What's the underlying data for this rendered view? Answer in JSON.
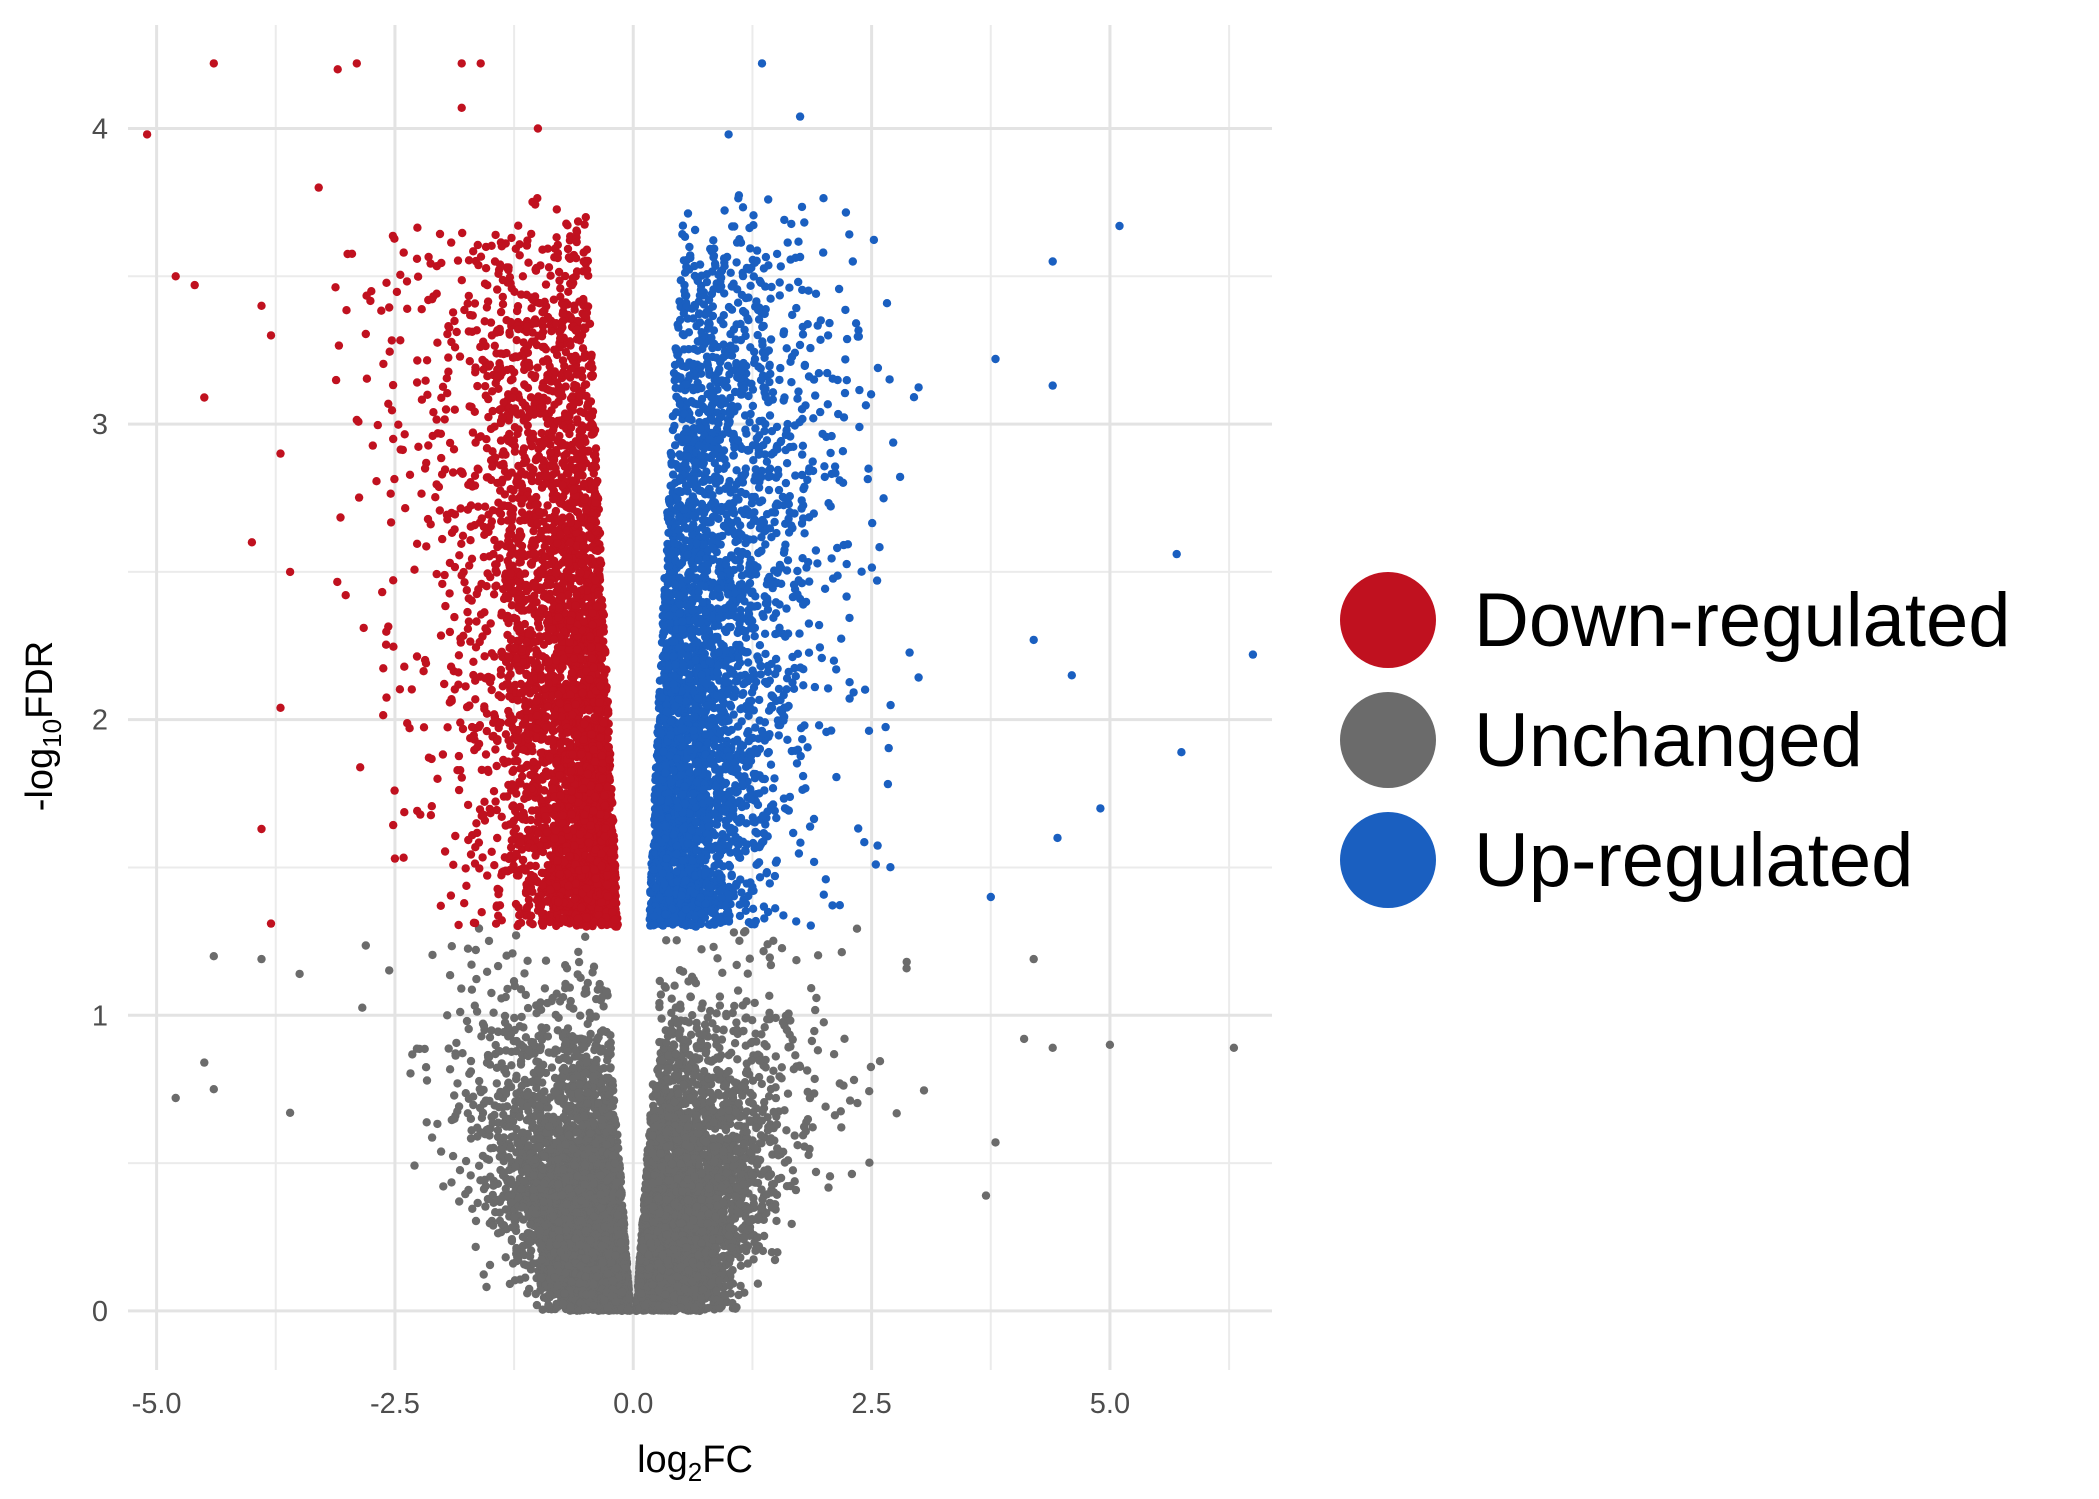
{
  "chart_data": {
    "type": "scatter",
    "title": "",
    "xlabel": {
      "base": "log",
      "sub": "2",
      "rest": "FC"
    },
    "ylabel": {
      "prefix": "-log",
      "sub": "10",
      "rest": "FDR"
    },
    "xlim": [
      -5.3,
      6.7
    ],
    "ylim": [
      -0.2,
      4.35
    ],
    "x_ticks": [
      -5.0,
      -2.5,
      0.0,
      2.5,
      5.0
    ],
    "x_tick_labels": [
      "-5.0",
      "-2.5",
      "0.0",
      "2.5",
      "5.0"
    ],
    "y_ticks": [
      0,
      1,
      2,
      3,
      4
    ],
    "y_tick_labels": [
      "0",
      "1",
      "2",
      "3",
      "4"
    ],
    "grid": true,
    "significance_threshold_y": 1.3,
    "legend_position": "right",
    "series": [
      {
        "name": "Down-regulated",
        "color": "#c0111f",
        "point_count": 4000,
        "highlight_points": [
          {
            "x": -5.1,
            "y": 3.98
          },
          {
            "x": -4.4,
            "y": 4.22
          },
          {
            "x": -4.8,
            "y": 3.5
          },
          {
            "x": -4.6,
            "y": 3.47
          },
          {
            "x": -4.5,
            "y": 3.09
          },
          {
            "x": -4.0,
            "y": 2.6
          },
          {
            "x": -3.9,
            "y": 3.4
          },
          {
            "x": -3.8,
            "y": 3.3
          },
          {
            "x": -3.7,
            "y": 2.9
          },
          {
            "x": -3.6,
            "y": 2.5
          },
          {
            "x": -3.9,
            "y": 1.63
          },
          {
            "x": -3.8,
            "y": 1.31
          },
          {
            "x": -3.7,
            "y": 2.04
          },
          {
            "x": -3.3,
            "y": 3.8
          },
          {
            "x": -3.1,
            "y": 4.2
          },
          {
            "x": -2.9,
            "y": 4.22
          },
          {
            "x": -1.8,
            "y": 4.22
          },
          {
            "x": -1.6,
            "y": 4.22
          },
          {
            "x": -1.8,
            "y": 4.07
          },
          {
            "x": -1.0,
            "y": 4.0
          },
          {
            "x": -2.5,
            "y": 1.53
          }
        ]
      },
      {
        "name": "Unchanged",
        "color": "#6b6b6b",
        "point_count": 9000,
        "highlight_points": [
          {
            "x": -4.8,
            "y": 0.72
          },
          {
            "x": -4.5,
            "y": 0.84
          },
          {
            "x": -4.4,
            "y": 0.75
          },
          {
            "x": -4.4,
            "y": 1.2
          },
          {
            "x": -3.9,
            "y": 1.19
          },
          {
            "x": -3.6,
            "y": 0.67
          },
          {
            "x": -3.5,
            "y": 1.14
          },
          {
            "x": 6.3,
            "y": 0.89
          },
          {
            "x": 5.0,
            "y": 0.9
          },
          {
            "x": 4.4,
            "y": 0.89
          },
          {
            "x": 4.1,
            "y": 0.92
          },
          {
            "x": 3.7,
            "y": 0.39
          },
          {
            "x": 3.8,
            "y": 0.57
          },
          {
            "x": 4.2,
            "y": 1.19
          }
        ]
      },
      {
        "name": "Up-regulated",
        "color": "#1a5fc0",
        "point_count": 3500,
        "highlight_points": [
          {
            "x": 1.35,
            "y": 4.22
          },
          {
            "x": 1.75,
            "y": 4.04
          },
          {
            "x": 1.0,
            "y": 3.98
          },
          {
            "x": 5.1,
            "y": 3.67
          },
          {
            "x": 4.4,
            "y": 3.55
          },
          {
            "x": 3.8,
            "y": 3.22
          },
          {
            "x": 4.4,
            "y": 3.13
          },
          {
            "x": 5.7,
            "y": 2.56
          },
          {
            "x": 6.5,
            "y": 2.22
          },
          {
            "x": 4.6,
            "y": 2.15
          },
          {
            "x": 5.75,
            "y": 1.89
          },
          {
            "x": 4.9,
            "y": 1.7
          },
          {
            "x": 4.45,
            "y": 1.6
          },
          {
            "x": 4.2,
            "y": 2.27
          },
          {
            "x": 3.75,
            "y": 1.4
          }
        ]
      }
    ]
  }
}
